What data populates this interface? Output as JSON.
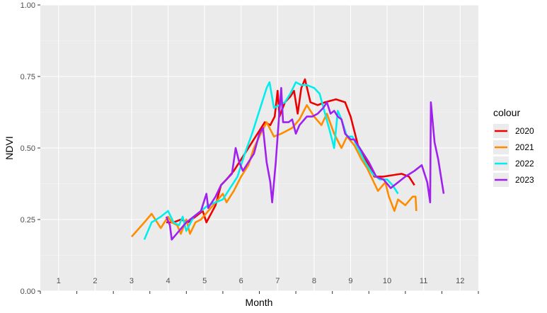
{
  "chart_data": {
    "type": "line",
    "xlabel": "Month",
    "ylabel": "NDVI",
    "ylim": [
      0,
      1
    ],
    "xlim": [
      0.5,
      12.5
    ],
    "yticks": [
      0,
      0.25,
      0.5,
      0.75,
      1
    ],
    "ytick_labels": [
      "0.00",
      "0.25",
      "0.50",
      "0.75",
      "1.00"
    ],
    "month_labels": [
      "1",
      "2",
      "3",
      "4",
      "5",
      "6",
      "7",
      "8",
      "9",
      "10",
      "11",
      "12"
    ],
    "grid": true,
    "legend": {
      "title": "colour",
      "position": "right"
    },
    "series": [
      {
        "name": "2020",
        "color": "#EE0000",
        "points": [
          [
            3.95,
            0.24
          ],
          [
            4.15,
            0.24
          ],
          [
            4.35,
            0.25
          ],
          [
            4.55,
            0.24
          ],
          [
            4.75,
            0.26
          ],
          [
            4.95,
            0.28
          ],
          [
            5.05,
            0.24
          ],
          [
            5.3,
            0.3
          ],
          [
            5.45,
            0.37
          ],
          [
            5.6,
            0.39
          ],
          [
            5.8,
            0.42
          ],
          [
            6.0,
            0.46
          ],
          [
            6.2,
            0.5
          ],
          [
            6.4,
            0.54
          ],
          [
            6.55,
            0.57
          ],
          [
            6.65,
            0.59
          ],
          [
            6.8,
            0.58
          ],
          [
            6.92,
            0.61
          ],
          [
            7.0,
            0.7
          ],
          [
            7.05,
            0.61
          ],
          [
            7.2,
            0.66
          ],
          [
            7.35,
            0.68
          ],
          [
            7.45,
            0.7
          ],
          [
            7.55,
            0.62
          ],
          [
            7.65,
            0.71
          ],
          [
            7.75,
            0.74
          ],
          [
            7.9,
            0.66
          ],
          [
            8.1,
            0.65
          ],
          [
            8.3,
            0.66
          ],
          [
            8.6,
            0.67
          ],
          [
            8.85,
            0.66
          ],
          [
            9.0,
            0.61
          ],
          [
            9.2,
            0.51
          ],
          [
            9.45,
            0.45
          ],
          [
            9.65,
            0.4
          ],
          [
            9.9,
            0.4
          ],
          [
            10.4,
            0.41
          ],
          [
            10.6,
            0.4
          ],
          [
            10.75,
            0.37
          ]
        ]
      },
      {
        "name": "2021",
        "color": "#FF8C00",
        "points": [
          [
            3.0,
            0.19
          ],
          [
            3.35,
            0.24
          ],
          [
            3.55,
            0.27
          ],
          [
            3.8,
            0.22
          ],
          [
            4.0,
            0.26
          ],
          [
            4.1,
            0.24
          ],
          [
            4.25,
            0.23
          ],
          [
            4.35,
            0.2
          ],
          [
            4.5,
            0.25
          ],
          [
            4.6,
            0.2
          ],
          [
            4.75,
            0.24
          ],
          [
            4.9,
            0.25
          ],
          [
            5.1,
            0.28
          ],
          [
            5.3,
            0.31
          ],
          [
            5.5,
            0.34
          ],
          [
            5.6,
            0.31
          ],
          [
            5.8,
            0.35
          ],
          [
            6.0,
            0.4
          ],
          [
            6.2,
            0.44
          ],
          [
            6.35,
            0.5
          ],
          [
            6.5,
            0.54
          ],
          [
            6.7,
            0.59
          ],
          [
            6.9,
            0.54
          ],
          [
            7.1,
            0.55
          ],
          [
            7.4,
            0.57
          ],
          [
            7.6,
            0.6
          ],
          [
            7.8,
            0.65
          ],
          [
            8.0,
            0.61
          ],
          [
            8.2,
            0.58
          ],
          [
            8.35,
            0.62
          ],
          [
            8.55,
            0.55
          ],
          [
            8.75,
            0.5
          ],
          [
            8.9,
            0.54
          ],
          [
            9.1,
            0.51
          ],
          [
            9.3,
            0.46
          ],
          [
            9.45,
            0.43
          ],
          [
            9.6,
            0.39
          ],
          [
            9.75,
            0.35
          ],
          [
            9.95,
            0.38
          ],
          [
            10.05,
            0.33
          ],
          [
            10.2,
            0.28
          ],
          [
            10.3,
            0.32
          ],
          [
            10.5,
            0.3
          ],
          [
            10.7,
            0.33
          ],
          [
            10.78,
            0.33
          ],
          [
            10.8,
            0.28
          ]
        ]
      },
      {
        "name": "2022",
        "color": "#00EEEE",
        "points": [
          [
            3.35,
            0.18
          ],
          [
            3.55,
            0.24
          ],
          [
            3.8,
            0.26
          ],
          [
            4.0,
            0.28
          ],
          [
            4.15,
            0.24
          ],
          [
            4.3,
            0.23
          ],
          [
            4.4,
            0.26
          ],
          [
            4.5,
            0.21
          ],
          [
            4.7,
            0.26
          ],
          [
            4.9,
            0.28
          ],
          [
            5.1,
            0.3
          ],
          [
            5.3,
            0.31
          ],
          [
            5.5,
            0.32
          ],
          [
            5.7,
            0.36
          ],
          [
            5.9,
            0.4
          ],
          [
            6.1,
            0.48
          ],
          [
            6.3,
            0.55
          ],
          [
            6.5,
            0.63
          ],
          [
            6.7,
            0.71
          ],
          [
            6.78,
            0.73
          ],
          [
            6.9,
            0.64
          ],
          [
            7.05,
            0.65
          ],
          [
            7.2,
            0.66
          ],
          [
            7.35,
            0.69
          ],
          [
            7.5,
            0.73
          ],
          [
            7.65,
            0.72
          ],
          [
            7.8,
            0.72
          ],
          [
            8.0,
            0.71
          ],
          [
            8.15,
            0.69
          ],
          [
            8.3,
            0.62
          ],
          [
            8.45,
            0.55
          ],
          [
            8.55,
            0.5
          ],
          [
            8.65,
            0.63
          ],
          [
            8.75,
            0.6
          ],
          [
            8.9,
            0.54
          ],
          [
            9.05,
            0.54
          ],
          [
            9.2,
            0.5
          ],
          [
            9.4,
            0.45
          ],
          [
            9.6,
            0.41
          ],
          [
            9.8,
            0.39
          ],
          [
            10.0,
            0.39
          ],
          [
            10.15,
            0.37
          ],
          [
            10.3,
            0.34
          ]
        ]
      },
      {
        "name": "2023",
        "color": "#A020F0",
        "points": [
          [
            3.95,
            0.26
          ],
          [
            4.05,
            0.23
          ],
          [
            4.1,
            0.18
          ],
          [
            4.3,
            0.21
          ],
          [
            4.5,
            0.24
          ],
          [
            4.7,
            0.26
          ],
          [
            4.9,
            0.28
          ],
          [
            5.05,
            0.34
          ],
          [
            5.1,
            0.29
          ],
          [
            5.3,
            0.33
          ],
          [
            5.45,
            0.37
          ],
          [
            5.6,
            0.39
          ],
          [
            5.75,
            0.41
          ],
          [
            5.85,
            0.5
          ],
          [
            5.95,
            0.45
          ],
          [
            6.05,
            0.42
          ],
          [
            6.2,
            0.45
          ],
          [
            6.35,
            0.48
          ],
          [
            6.5,
            0.55
          ],
          [
            6.6,
            0.57
          ],
          [
            6.7,
            0.45
          ],
          [
            6.8,
            0.38
          ],
          [
            6.85,
            0.31
          ],
          [
            6.95,
            0.45
          ],
          [
            7.05,
            0.63
          ],
          [
            7.1,
            0.71
          ],
          [
            7.15,
            0.59
          ],
          [
            7.3,
            0.59
          ],
          [
            7.4,
            0.6
          ],
          [
            7.5,
            0.55
          ],
          [
            7.6,
            0.58
          ],
          [
            7.8,
            0.61
          ],
          [
            7.95,
            0.61
          ],
          [
            8.1,
            0.62
          ],
          [
            8.25,
            0.64
          ],
          [
            8.35,
            0.66
          ],
          [
            8.45,
            0.62
          ],
          [
            8.55,
            0.63
          ],
          [
            8.65,
            0.61
          ],
          [
            8.75,
            0.6
          ],
          [
            8.85,
            0.55
          ],
          [
            9.0,
            0.53
          ],
          [
            9.1,
            0.53
          ],
          [
            9.3,
            0.49
          ],
          [
            9.5,
            0.45
          ],
          [
            9.7,
            0.4
          ],
          [
            9.9,
            0.39
          ],
          [
            10.1,
            0.36
          ],
          [
            10.3,
            0.38
          ],
          [
            10.5,
            0.4
          ],
          [
            10.75,
            0.42
          ],
          [
            10.95,
            0.44
          ],
          [
            11.1,
            0.38
          ],
          [
            11.18,
            0.31
          ],
          [
            11.2,
            0.66
          ],
          [
            11.3,
            0.52
          ],
          [
            11.4,
            0.46
          ],
          [
            11.55,
            0.34
          ]
        ]
      }
    ]
  }
}
